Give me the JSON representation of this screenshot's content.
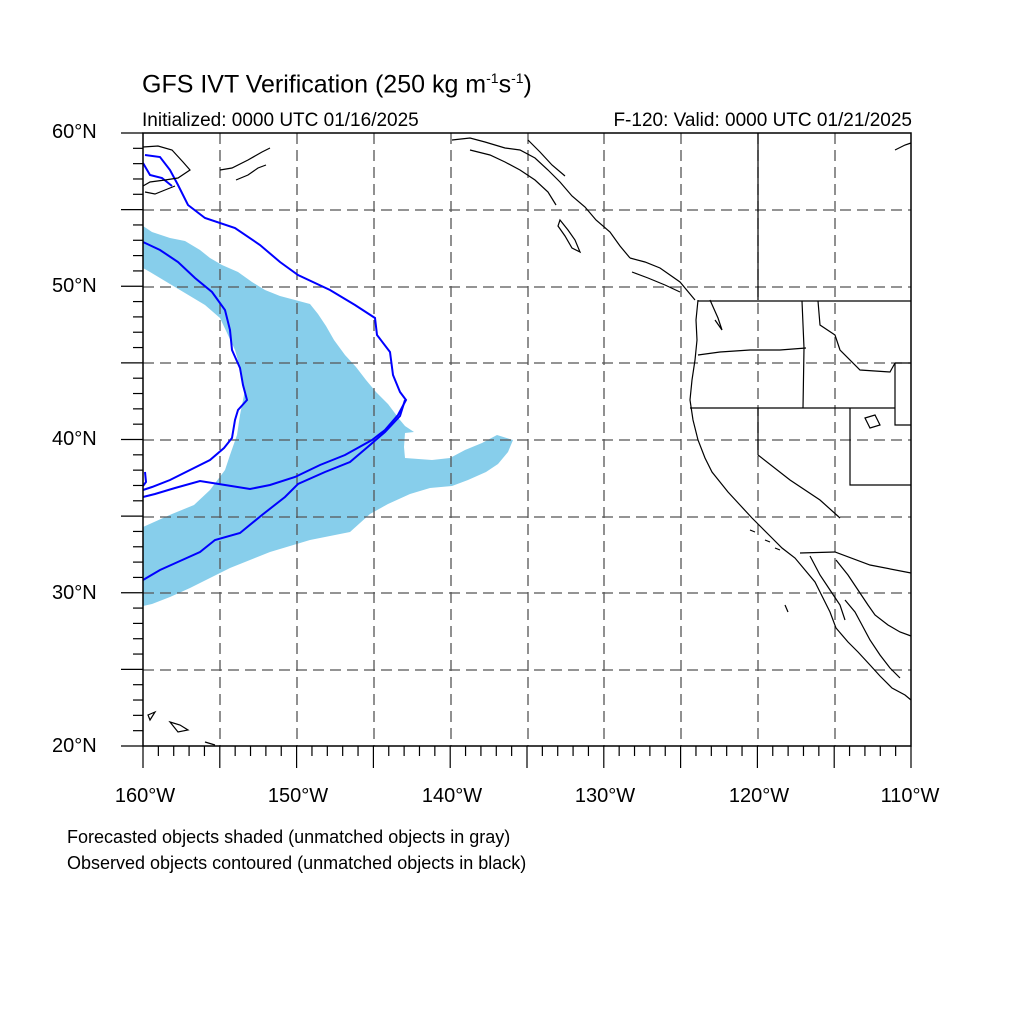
{
  "title": {
    "main": "GFS IVT Verification (250 kg m",
    "sup1": "-1",
    "mid": "s",
    "sup2": "-1",
    "end": ")"
  },
  "subtitle": {
    "left": "Initialized: 0000 UTC 01/16/2025",
    "right": "F-120: Valid: 0000 UTC 01/21/2025"
  },
  "axes": {
    "lat_labels": [
      "60°N",
      "50°N",
      "40°N",
      "30°N",
      "20°N"
    ],
    "lon_labels": [
      "160°W",
      "150°W",
      "140°W",
      "130°W",
      "120°W",
      "110°W"
    ],
    "lon_range": [
      -160,
      -110
    ],
    "lat_range": [
      20,
      60
    ],
    "grid": true,
    "grid_style": "dashed"
  },
  "legend_notes": [
    "Forecasted objects shaded (unmatched objects in gray)",
    "Observed objects contoured (unmatched objects in black)"
  ],
  "colors": {
    "forecast_fill": "#87ceeb",
    "observed_contour": "#0000ff",
    "coastline": "#000000",
    "grid": "#555555"
  }
}
